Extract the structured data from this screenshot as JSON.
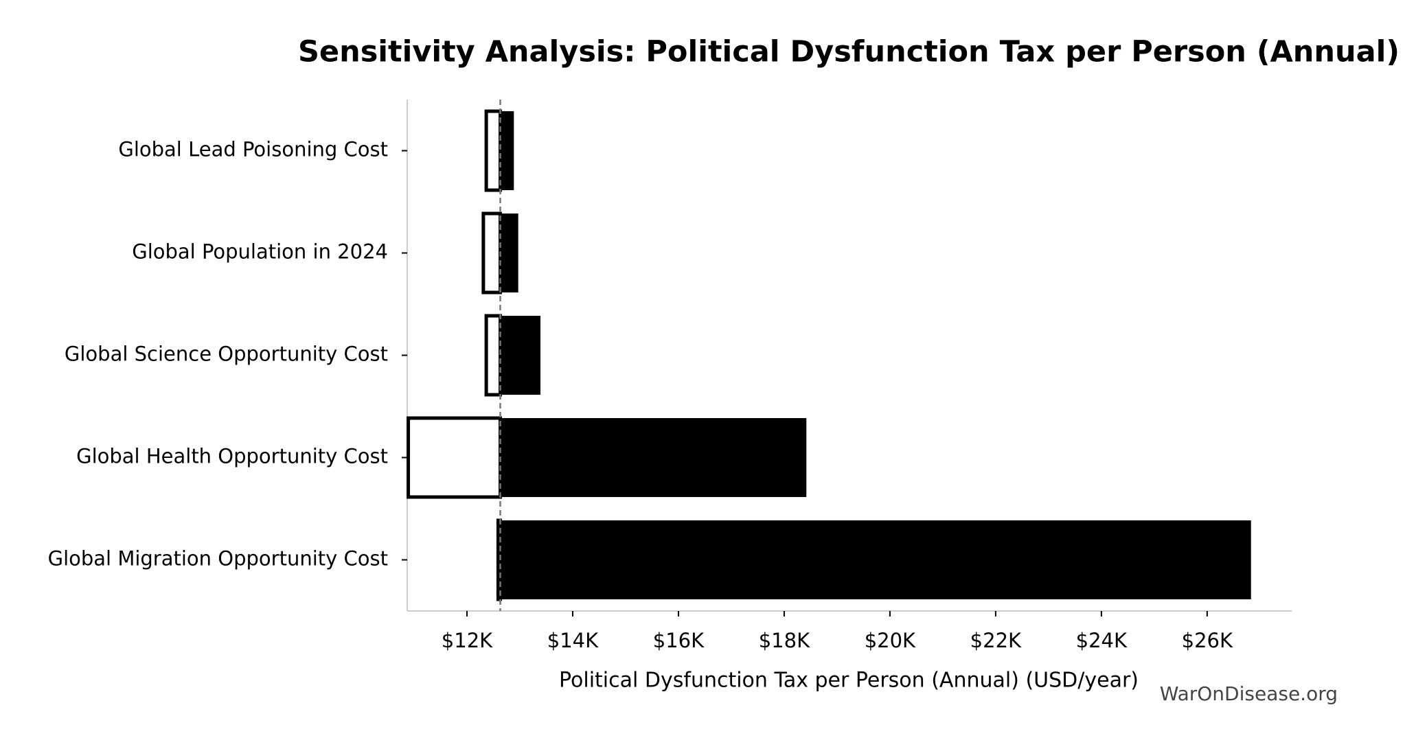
{
  "chart_data": {
    "type": "tornado",
    "title": "Sensitivity Analysis: Political Dysfunction Tax per Person (Annual)",
    "x_label": "Political Dysfunction Tax per Person (Annual) (USD/year)",
    "watermark": "WarOnDisease.org",
    "categories": [
      "Global Lead Poisoning Cost",
      "Global Population in 2024",
      "Global Science Opportunity Cost",
      "Global Health Opportunity Cost",
      "Global Migration Opportunity Cost"
    ],
    "baseline": 12630,
    "series": [
      {
        "color": "#ffffff",
        "values": [
          12365,
          12310,
          12365,
          10890,
          12590
        ]
      },
      {
        "color": "#000000",
        "values": [
          12887,
          12970,
          13390,
          18420,
          26830
        ]
      }
    ],
    "xlim": [
      10870,
      27600
    ],
    "xticks": [
      {
        "value": 12000,
        "label": "$12K"
      },
      {
        "value": 14000,
        "label": "$14K"
      },
      {
        "value": 16000,
        "label": "$16K"
      },
      {
        "value": 18000,
        "label": "$18K"
      },
      {
        "value": 20000,
        "label": "$20K"
      },
      {
        "value": 22000,
        "label": "$22K"
      },
      {
        "value": 24000,
        "label": "$24K"
      },
      {
        "value": 26000,
        "label": "$26K"
      }
    ]
  }
}
